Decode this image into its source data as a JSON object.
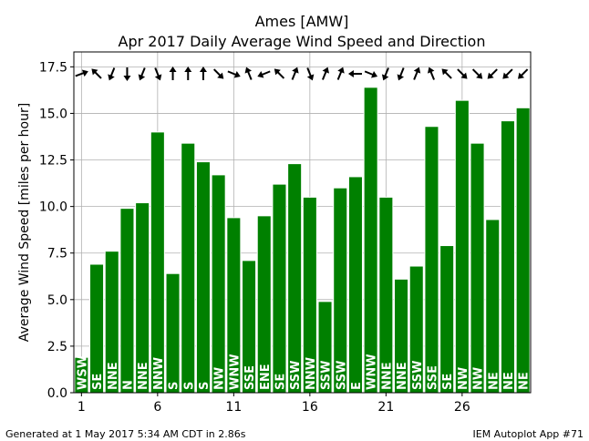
{
  "chart_data": {
    "type": "bar",
    "title": "Ames [AMW]",
    "subtitle": "Apr 2017 Daily Average Wind Speed and Direction",
    "ylabel": "Average Wind Speed [miles per hour]",
    "xlabel": "",
    "ylim": [
      0,
      18.3
    ],
    "xlim": [
      0.5,
      30.5
    ],
    "yticks": [
      0.0,
      2.5,
      5.0,
      7.5,
      10.0,
      12.5,
      15.0,
      17.5
    ],
    "ytick_labels": [
      "0.0",
      "2.5",
      "5.0",
      "7.5",
      "10.0",
      "12.5",
      "15.0",
      "17.5"
    ],
    "xticks": [
      1,
      6,
      11,
      16,
      21,
      26
    ],
    "xtick_labels": [
      "1",
      "6",
      "11",
      "16",
      "21",
      "26"
    ],
    "grid": true,
    "bar_color": "#008000",
    "days": [
      1,
      2,
      3,
      4,
      5,
      6,
      7,
      8,
      9,
      10,
      11,
      12,
      13,
      14,
      15,
      16,
      17,
      18,
      19,
      20,
      21,
      22,
      23,
      24,
      25,
      26,
      27,
      28,
      29,
      30
    ],
    "values": [
      1.9,
      6.9,
      7.6,
      9.9,
      10.2,
      14.0,
      6.4,
      13.4,
      12.4,
      11.7,
      9.4,
      7.1,
      9.5,
      11.2,
      12.3,
      10.5,
      4.9,
      11.0,
      11.6,
      16.4,
      10.5,
      6.1,
      6.8,
      14.3,
      7.9,
      15.7,
      13.4,
      9.3,
      14.6,
      15.3
    ],
    "directions": [
      "WSW",
      "SE",
      "NNE",
      "N",
      "NNE",
      "NNW",
      "S",
      "S",
      "S",
      "NW",
      "WNW",
      "SSE",
      "ENE",
      "SE",
      "SSW",
      "NNW",
      "SSW",
      "SSW",
      "E",
      "WNW",
      "NNE",
      "NNE",
      "SSW",
      "SSE",
      "SE",
      "NW",
      "NW",
      "NE",
      "NE",
      "NE"
    ],
    "arrow_angles": [
      250,
      135,
      22,
      0,
      22,
      338,
      180,
      180,
      180,
      315,
      292,
      158,
      68,
      135,
      202,
      338,
      202,
      202,
      90,
      292,
      22,
      22,
      202,
      158,
      135,
      315,
      315,
      45,
      45,
      45
    ]
  },
  "footer": {
    "left": "Generated at 1 May 2017 5:34 AM CDT in 2.86s",
    "right": "IEM Autoplot App #71"
  }
}
